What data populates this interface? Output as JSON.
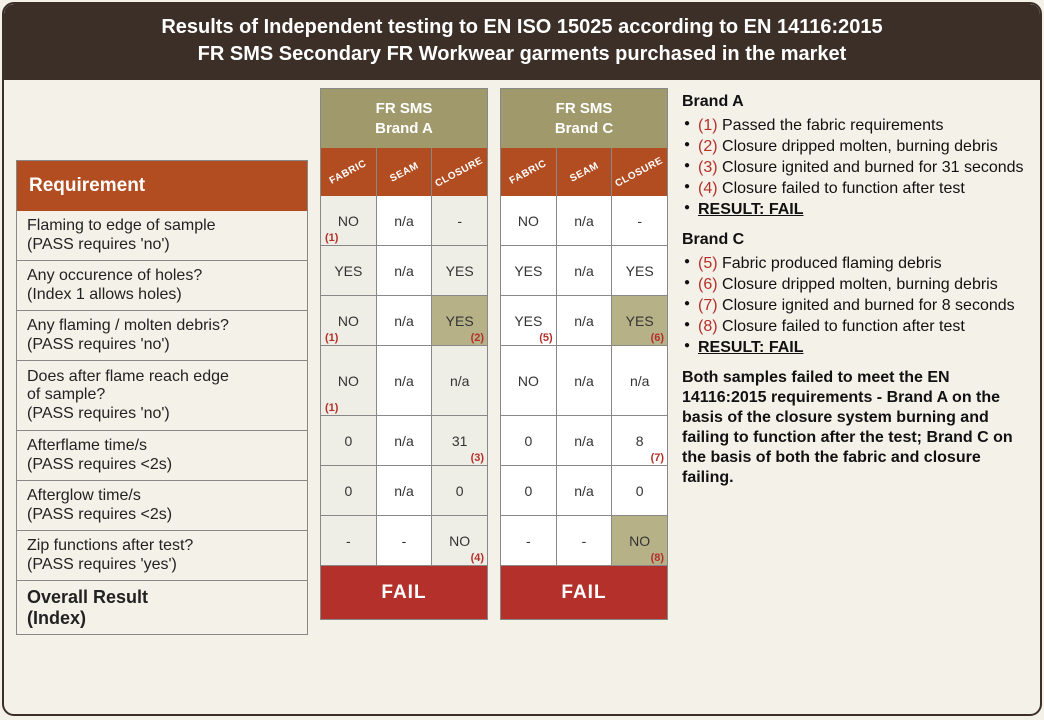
{
  "colors": {
    "pageBg": "#f4f1e9",
    "headerBg": "#3b2f28",
    "headerText": "#ffffff",
    "accentRust": "#b14d21",
    "khaki": "#a0996b",
    "highlightCell": "#b7b188",
    "altCell": "#efeee6",
    "failBg": "#b4302a",
    "refText": "#b4302a",
    "border": "#888888"
  },
  "header": {
    "line1": "Results of Independent testing to EN ISO 15025  according to EN 14116:2015",
    "line2": "FR SMS Secondary FR Workwear garments purchased in the market"
  },
  "requirementHeader": "Requirement",
  "overallLabel1": "Overall Result",
  "overallLabel2": "(Index)",
  "brandATitle": "FR SMS\nBrand A",
  "brandCTitle": "FR SMS\nBrand C",
  "subheads": [
    "FABRIC",
    "SEAM",
    "CLOSURE"
  ],
  "requirements": [
    {
      "line1": "Flaming to edge of sample",
      "line2": "(PASS requires 'no')",
      "h": "h50"
    },
    {
      "line1": "Any occurence of holes?",
      "line2": "(Index 1 allows holes)",
      "h": "h50"
    },
    {
      "line1": "Any flaming / molten debris?",
      "line2": "(PASS requires 'no')",
      "h": "h50"
    },
    {
      "line1": "Does after flame reach edge",
      "mid": "of sample?",
      "line2": "(PASS requires 'no')",
      "h": "h70"
    },
    {
      "line1": "Afterflame time/s",
      "line2": "(PASS requires <2s)",
      "h": "h50"
    },
    {
      "line1": "Afterglow time/s",
      "line2": "(PASS requires <2s)",
      "h": "h50"
    },
    {
      "line1": "Zip functions after test?",
      "line2": "(PASS requires 'yes')",
      "h": "h50"
    }
  ],
  "brandA": {
    "rows": [
      [
        {
          "v": "NO",
          "alt": true,
          "ref": "(1)"
        },
        {
          "v": "n/a"
        },
        {
          "v": "-",
          "alt": true
        }
      ],
      [
        {
          "v": "YES",
          "alt": true
        },
        {
          "v": "n/a"
        },
        {
          "v": "YES",
          "alt": true
        }
      ],
      [
        {
          "v": "NO",
          "alt": true,
          "ref": "(1)"
        },
        {
          "v": "n/a"
        },
        {
          "v": "YES",
          "hl": true,
          "refr": "(2)"
        }
      ],
      [
        {
          "v": "NO",
          "alt": true,
          "ref": "(1)"
        },
        {
          "v": "n/a"
        },
        {
          "v": "n/a",
          "alt": true
        }
      ],
      [
        {
          "v": "0",
          "alt": true
        },
        {
          "v": "n/a"
        },
        {
          "v": "31",
          "alt": true,
          "refr": "(3)"
        }
      ],
      [
        {
          "v": "0",
          "alt": true
        },
        {
          "v": "n/a"
        },
        {
          "v": "0",
          "alt": true
        }
      ],
      [
        {
          "v": "-",
          "alt": true
        },
        {
          "v": "-"
        },
        {
          "v": "NO",
          "alt": true,
          "refr": "(4)"
        }
      ]
    ],
    "fail": "FAIL"
  },
  "brandC": {
    "rows": [
      [
        {
          "v": "NO"
        },
        {
          "v": "n/a"
        },
        {
          "v": "-"
        }
      ],
      [
        {
          "v": "YES"
        },
        {
          "v": "n/a"
        },
        {
          "v": "YES"
        }
      ],
      [
        {
          "v": "YES",
          "refr": "(5)"
        },
        {
          "v": "n/a"
        },
        {
          "v": "YES",
          "hl": true,
          "refr": "(6)"
        }
      ],
      [
        {
          "v": "NO"
        },
        {
          "v": "n/a"
        },
        {
          "v": "n/a"
        }
      ],
      [
        {
          "v": "0"
        },
        {
          "v": "n/a"
        },
        {
          "v": "8",
          "refr": "(7)"
        }
      ],
      [
        {
          "v": "0"
        },
        {
          "v": "n/a"
        },
        {
          "v": "0"
        }
      ],
      [
        {
          "v": "-"
        },
        {
          "v": "-"
        },
        {
          "v": "NO",
          "hl": true,
          "refr": "(8)"
        }
      ]
    ],
    "fail": "FAIL"
  },
  "notes": {
    "brandA": {
      "title": "Brand A",
      "items": [
        "(1) Passed the fabric requirements",
        "(2) Closure dripped molten, burning debris",
        "(3) Closure ignited and burned for 31 seconds",
        "(4) Closure failed to function after test"
      ],
      "resultLabel": "RESULT: FAIL"
    },
    "brandC": {
      "title": "Brand C",
      "items": [
        "(5) Fabric produced flaming debris",
        "(6) Closure dripped molten, burning debris",
        "(7) Closure ignited and burned for 8 seconds",
        "(8) Closure failed to function after test"
      ],
      "resultLabel": "RESULT: FAIL"
    },
    "summary": "Both samples failed to meet the EN 14116:2015 requirements - Brand A on the basis of the closure system burning and failing to function after the test; Brand C on the basis of both the fabric and closure failing."
  }
}
